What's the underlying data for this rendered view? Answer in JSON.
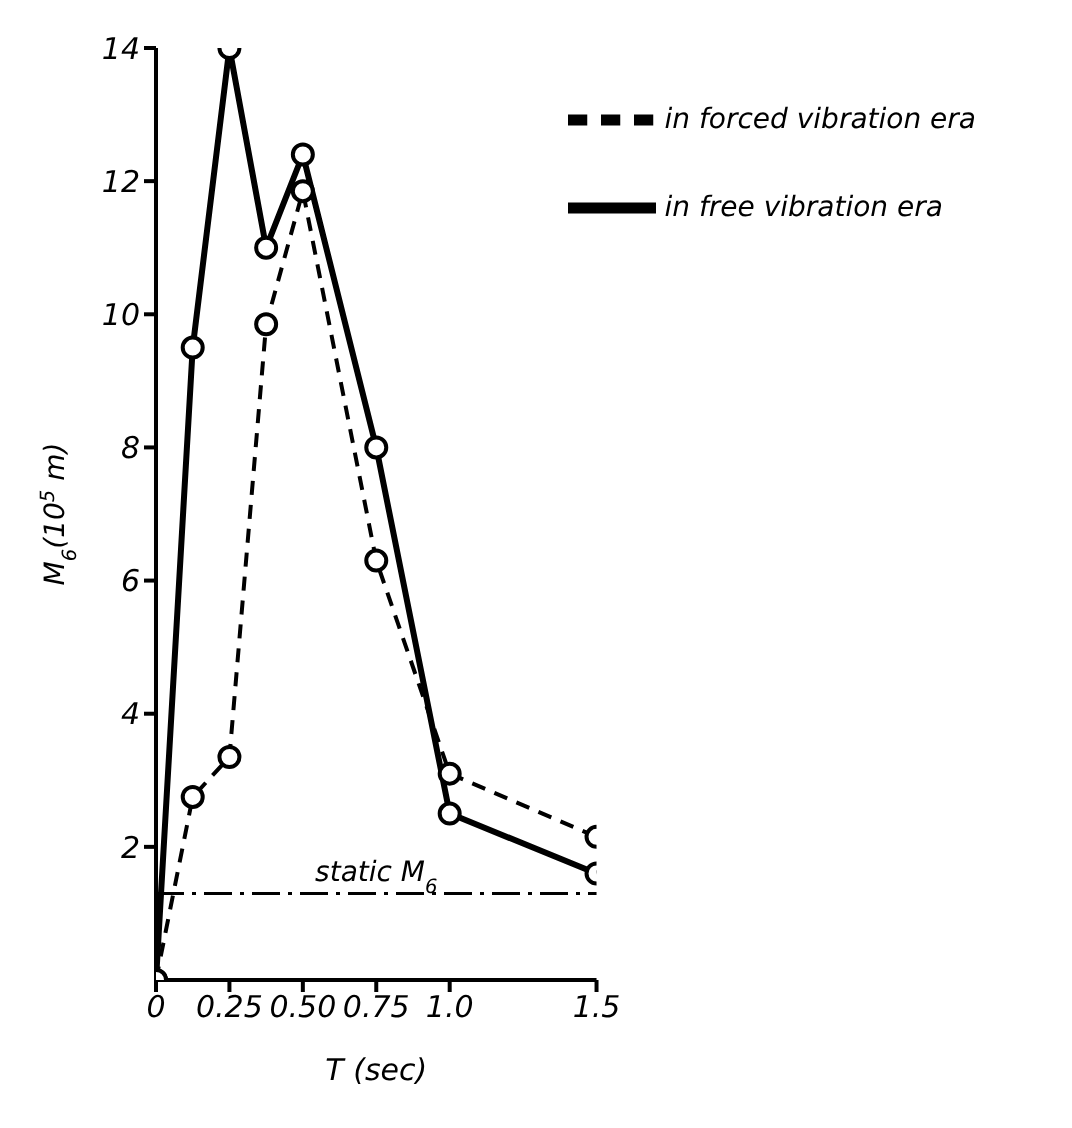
{
  "chart_data": {
    "type": "line",
    "xlabel": "T   (sec)",
    "ylabel": "M$_{6}$(10$^{5}$ m)",
    "x": [
      0,
      0.125,
      0.25,
      0.375,
      0.5,
      0.75,
      1.0,
      1.5
    ],
    "series": [
      {
        "name": "in forced vibration era",
        "color": "#000000",
        "line_style": "dashed",
        "values": [
          0,
          2.75,
          3.35,
          9.85,
          11.85,
          6.3,
          3.1,
          2.15
        ]
      },
      {
        "name": "in free vibration era",
        "color": "#000000",
        "line_style": "solid",
        "values": [
          0,
          9.5,
          14,
          11,
          12.4,
          8,
          2.5,
          1.6
        ]
      }
    ],
    "xlim": [
      0,
      1.5
    ],
    "xticks": [
      0,
      0.25,
      {
        "value": 0.5,
        "label": "0.50"
      },
      0.75,
      {
        "value": 1,
        "label": "1.0"
      },
      1.5
    ],
    "ylim": [
      0,
      14
    ],
    "yticks": [
      2,
      4,
      6,
      8,
      10,
      12,
      14
    ],
    "ref_lines": [
      {
        "axis": "y",
        "value": 1.3,
        "label": "static M$_{6}$",
        "line_style": "dashed",
        "color": "#000000"
      }
    ],
    "grid": false,
    "legend": "top right",
    "marker": "circle"
  }
}
